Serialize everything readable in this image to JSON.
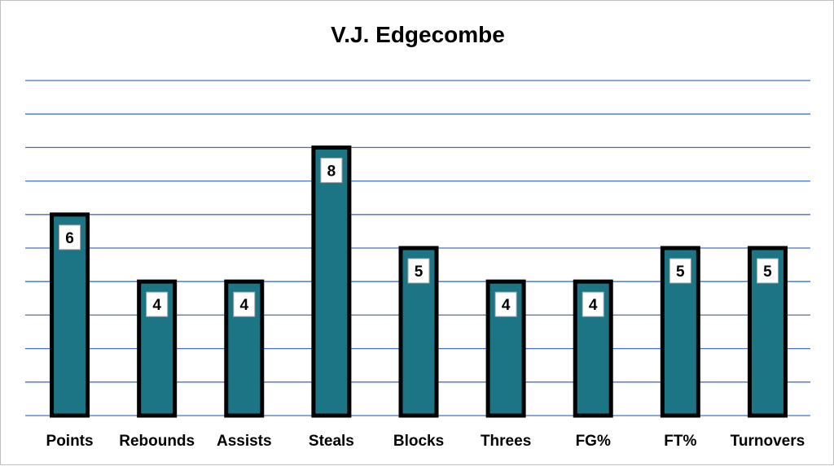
{
  "chart_data": {
    "type": "bar",
    "title": "V.J. Edgecombe",
    "xlabel": "",
    "ylabel": "",
    "categories": [
      "Points",
      "Rebounds",
      "Assists",
      "Steals",
      "Blocks",
      "Threes",
      "FG%",
      "FT%",
      "Turnovers"
    ],
    "values": [
      6,
      4,
      4,
      8,
      5,
      4,
      4,
      5,
      5
    ],
    "ylim": [
      0,
      10
    ],
    "grid": true,
    "legend": "none",
    "colors": {
      "bar_fill": "#1b7584",
      "bar_outline": "#000000",
      "gridline": "#4472c4"
    }
  }
}
